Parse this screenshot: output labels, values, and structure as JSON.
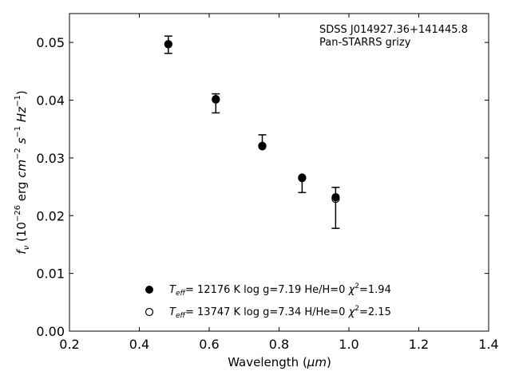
{
  "chart_data": {
    "type": "scatter",
    "xlabel_text": "Wavelength (",
    "xlabel_unit": "μm",
    "xlabel_close": ")",
    "ylabel_parts": {
      "f": "f",
      "nu": "ν",
      "open": " (10",
      "exp1": "−26",
      "erg": " erg ",
      "cm": "cm",
      "exp2": "−2",
      "s": "s",
      "exp3": "−1",
      "hz": "Hz",
      "exp4": "−1",
      "close": ")"
    },
    "annotation": [
      "SDSS J014927.36+141445.8",
      "Pan-STARRS grizy"
    ],
    "xlim": [
      0.2,
      1.4
    ],
    "ylim": [
      0.0,
      0.055
    ],
    "xticks": [
      0.2,
      0.4,
      0.6,
      0.8,
      1.0,
      1.2,
      1.4
    ],
    "xtick_labels": [
      "0.2",
      "0.4",
      "0.6",
      "0.8",
      "1.0",
      "1.2",
      "1.4"
    ],
    "yticks": [
      0.0,
      0.01,
      0.02,
      0.03,
      0.04,
      0.05
    ],
    "ytick_labels": [
      "0.00",
      "0.01",
      "0.02",
      "0.03",
      "0.04",
      "0.05"
    ],
    "observed": {
      "x": [
        0.483,
        0.619,
        0.752,
        0.866,
        0.962
      ],
      "y": [
        0.0497,
        0.0402,
        0.032,
        0.0265,
        0.023
      ],
      "err_low": [
        0.0481,
        0.0378,
        0.032,
        0.024,
        0.0178
      ],
      "err_high": [
        0.0511,
        0.0411,
        0.034,
        0.0265,
        0.0249
      ]
    },
    "series": [
      {
        "marker": "filled",
        "x": [
          0.483,
          0.619,
          0.752,
          0.866,
          0.962
        ],
        "y": [
          0.0497,
          0.0402,
          0.0321,
          0.0266,
          0.0232
        ],
        "legend": {
          "T": "T",
          "Tsub": "eff",
          "rest1": "= 12176 K  log g=7.19  He/H=0  ",
          "chi": "χ",
          "chisup": "2",
          "rest2": "=1.94"
        }
      },
      {
        "marker": "open",
        "x": [
          0.483,
          0.619,
          0.752,
          0.866,
          0.962
        ],
        "y": [
          0.0497,
          0.0401,
          0.032,
          0.0265,
          0.0229
        ],
        "legend": {
          "T": "T",
          "Tsub": "eff",
          "rest1": "= 13747 K  log g=7.34  H/He=0  ",
          "chi": "χ",
          "chisup": "2",
          "rest2": "=2.15"
        }
      }
    ]
  }
}
